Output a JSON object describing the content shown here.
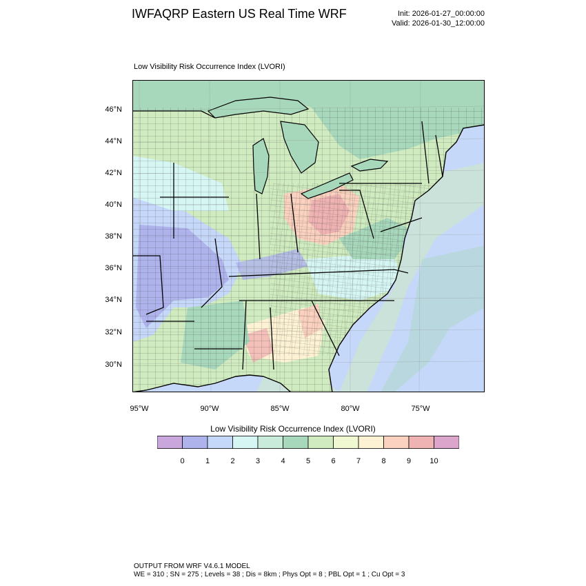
{
  "header": {
    "title": "IWFAQRP Eastern US Real Time WRF",
    "init": "Init: 2026-01-27_00:00:00",
    "valid": "Valid: 2026-01-30_12:00:00"
  },
  "map": {
    "subtitle": "Low Visibility Risk Occurrence Index   (LVORI)",
    "lat_labels": [
      "46°N",
      "44°N",
      "42°N",
      "40°N",
      "38°N",
      "36°N",
      "34°N",
      "32°N",
      "30°N"
    ],
    "lon_labels": [
      "95°W",
      "90°W",
      "85°W",
      "80°W",
      "75°W"
    ]
  },
  "colorbar": {
    "title": "Low Visibility Risk Occurrence Index  (LVORI)",
    "labels": [
      "0",
      "1",
      "2",
      "3",
      "4",
      "5",
      "6",
      "7",
      "8",
      "9",
      "10"
    ],
    "colors": [
      "#c9a6dc",
      "#aeb3ec",
      "#c6d8fa",
      "#d6f6f4",
      "#c8ecd9",
      "#a8d8bc",
      "#cfebbf",
      "#f0f8d2",
      "#fdf2d3",
      "#fbd2c0",
      "#f0b3b3",
      "#dca6cc"
    ]
  },
  "footer": {
    "line1": "OUTPUT FROM WRF V4.6.1 MODEL",
    "line2": "WE = 310 ; SN = 275 ; Levels = 38 ; Dis = 8km ; Phys Opt = 8 ; PBL Opt = 1 ; Cu Opt = 3"
  }
}
